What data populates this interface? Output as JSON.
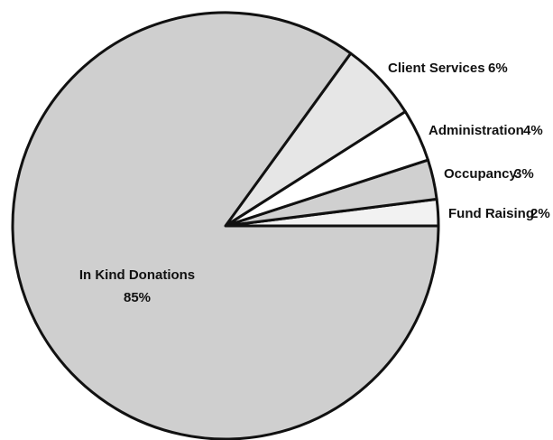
{
  "chart_data": {
    "type": "pie",
    "start_angle_deg": 0,
    "direction": "counterclockwise",
    "slices": [
      {
        "label": "Fund Raising",
        "value": 2,
        "value_label": "2%",
        "color": "#f2f2f2"
      },
      {
        "label": "Occupancy",
        "value": 3,
        "value_label": "3%",
        "color": "#d0d0d0"
      },
      {
        "label": "Administration",
        "value": 4,
        "value_label": "4%",
        "color": "#ffffff"
      },
      {
        "label": "Client Services",
        "value": 6,
        "value_label": "6%",
        "color": "#e6e6e6"
      },
      {
        "label": "In Kind Donations",
        "value": 85,
        "value_label": "85%",
        "color": "#cfcfcf"
      }
    ],
    "edge_color": "#111111"
  }
}
